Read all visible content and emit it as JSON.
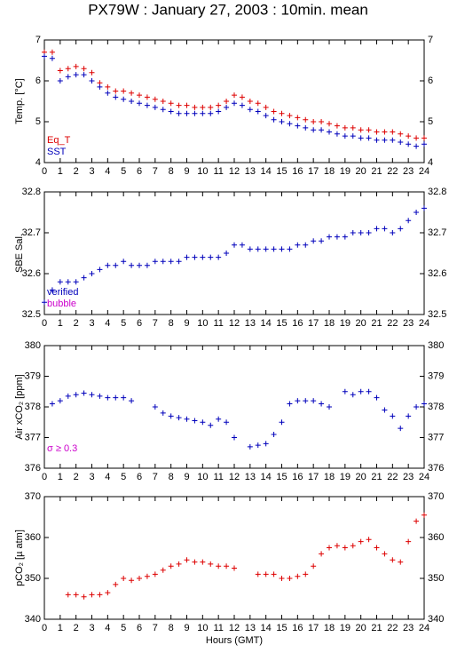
{
  "title": "PX79W : January 27, 2003 : 10min. mean",
  "chart_data": [
    {
      "type": "scatter",
      "ylabel": "Temp. [°C]",
      "xlim": [
        0,
        24
      ],
      "xticks": [
        0,
        1,
        2,
        3,
        4,
        5,
        6,
        7,
        8,
        9,
        10,
        11,
        12,
        13,
        14,
        15,
        16,
        17,
        18,
        19,
        20,
        21,
        22,
        23,
        24
      ],
      "ylim": [
        4,
        7
      ],
      "yticks": [
        4,
        5,
        6,
        7
      ],
      "x": [
        0,
        0.5,
        1,
        1.5,
        2,
        2.5,
        3,
        3.5,
        4,
        4.5,
        5,
        5.5,
        6,
        6.5,
        7,
        7.5,
        8,
        8.5,
        9,
        9.5,
        10,
        10.5,
        11,
        11.5,
        12,
        12.5,
        13,
        13.5,
        14,
        14.5,
        15,
        15.5,
        16,
        16.5,
        17,
        17.5,
        18,
        18.5,
        19,
        19.5,
        20,
        20.5,
        21,
        21.5,
        22,
        22.5,
        23,
        23.5,
        24
      ],
      "series": [
        {
          "name": "Eq_T",
          "color": "#dd0000",
          "values": [
            6.7,
            6.7,
            6.25,
            6.3,
            6.35,
            6.3,
            6.2,
            5.95,
            5.85,
            5.75,
            5.75,
            5.7,
            5.65,
            5.6,
            5.55,
            5.5,
            5.45,
            5.4,
            5.4,
            5.35,
            5.35,
            5.35,
            5.4,
            5.5,
            5.65,
            5.6,
            5.5,
            5.45,
            5.35,
            5.25,
            5.2,
            5.15,
            5.1,
            5.05,
            5.0,
            5.0,
            4.95,
            4.9,
            4.85,
            4.85,
            4.8,
            4.8,
            4.75,
            4.75,
            4.75,
            4.7,
            4.65,
            4.6,
            4.6
          ]
        },
        {
          "name": "SST",
          "color": "#0000bb",
          "values": [
            6.6,
            6.55,
            6.0,
            6.1,
            6.15,
            6.15,
            6.0,
            5.85,
            5.7,
            5.6,
            5.55,
            5.5,
            5.45,
            5.4,
            5.35,
            5.3,
            5.25,
            5.2,
            5.2,
            5.2,
            5.2,
            5.2,
            5.25,
            5.35,
            5.45,
            5.4,
            5.3,
            5.25,
            5.15,
            5.05,
            5.0,
            4.95,
            4.9,
            4.85,
            4.8,
            4.8,
            4.75,
            4.7,
            4.65,
            4.65,
            4.6,
            4.6,
            4.55,
            4.55,
            4.55,
            4.5,
            4.45,
            4.4,
            4.45
          ]
        }
      ]
    },
    {
      "type": "scatter",
      "ylabel": "SBE Sal.",
      "xlim": [
        0,
        24
      ],
      "xticks": [
        0,
        1,
        2,
        3,
        4,
        5,
        6,
        7,
        8,
        9,
        10,
        11,
        12,
        13,
        14,
        15,
        16,
        17,
        18,
        19,
        20,
        21,
        22,
        23,
        24
      ],
      "ylim": [
        32.5,
        32.8
      ],
      "yticks": [
        32.5,
        32.6,
        32.7,
        32.8
      ],
      "x": [
        0,
        0.5,
        1,
        1.5,
        2,
        2.5,
        3,
        3.5,
        4,
        4.5,
        5,
        5.5,
        6,
        6.5,
        7,
        7.5,
        8,
        8.5,
        9,
        9.5,
        10,
        10.5,
        11,
        11.5,
        12,
        12.5,
        13,
        13.5,
        14,
        14.5,
        15,
        15.5,
        16,
        16.5,
        17,
        17.5,
        18,
        18.5,
        19,
        19.5,
        20,
        20.5,
        21,
        21.5,
        22,
        22.5,
        23,
        23.5,
        24
      ],
      "series": [
        {
          "name": "verified",
          "color": "#0000bb",
          "values": [
            32.53,
            32.56,
            32.58,
            32.58,
            32.58,
            32.59,
            32.6,
            32.61,
            32.62,
            32.62,
            32.63,
            32.62,
            32.62,
            32.62,
            32.63,
            32.63,
            32.63,
            32.63,
            32.64,
            32.64,
            32.64,
            32.64,
            32.64,
            32.65,
            32.67,
            32.67,
            32.66,
            32.66,
            32.66,
            32.66,
            32.66,
            32.66,
            32.67,
            32.67,
            32.68,
            32.68,
            32.69,
            32.69,
            32.69,
            32.7,
            32.7,
            32.7,
            32.71,
            32.71,
            32.7,
            32.71,
            32.73,
            32.75,
            32.76
          ]
        },
        {
          "name": "bubble",
          "color": "#cc00cc",
          "values": [
            null,
            null,
            null,
            null,
            null,
            null,
            null,
            null,
            null,
            null,
            null,
            null,
            null,
            null,
            null,
            null,
            null,
            null,
            null,
            null,
            null,
            null,
            null,
            null,
            null,
            null,
            null,
            null,
            null,
            null,
            null,
            null,
            null,
            null,
            null,
            null,
            null,
            null,
            null,
            null,
            null,
            null,
            null,
            null,
            null,
            null,
            null,
            null,
            null
          ]
        }
      ]
    },
    {
      "type": "scatter",
      "ylabel": "Air xCO₂ [ppm]",
      "annotation": "σ ≥ 0.3",
      "annotation_color": "#cc00cc",
      "xlim": [
        0,
        24
      ],
      "xticks": [
        0,
        1,
        2,
        3,
        4,
        5,
        6,
        7,
        8,
        9,
        10,
        11,
        12,
        13,
        14,
        15,
        16,
        17,
        18,
        19,
        20,
        21,
        22,
        23,
        24
      ],
      "ylim": [
        376,
        380
      ],
      "yticks": [
        376,
        377,
        378,
        379,
        380
      ],
      "x": [
        0,
        0.5,
        1,
        1.5,
        2,
        2.5,
        3,
        3.5,
        4,
        4.5,
        5,
        5.5,
        6,
        6.5,
        7,
        7.5,
        8,
        8.5,
        9,
        9.5,
        10,
        10.5,
        11,
        11.5,
        12,
        12.5,
        13,
        13.5,
        14,
        14.5,
        15,
        15.5,
        16,
        16.5,
        17,
        17.5,
        18,
        18.5,
        19,
        19.5,
        20,
        20.5,
        21,
        21.5,
        22,
        22.5,
        23,
        23.5,
        24
      ],
      "series": [
        {
          "color": "#0000bb",
          "values": [
            null,
            378.1,
            378.2,
            378.35,
            378.4,
            378.45,
            378.4,
            378.35,
            378.3,
            378.3,
            378.3,
            378.2,
            null,
            null,
            378.0,
            377.8,
            377.7,
            377.65,
            377.6,
            377.55,
            377.5,
            377.4,
            377.6,
            377.5,
            377.0,
            null,
            376.7,
            376.75,
            376.8,
            377.1,
            377.5,
            378.1,
            378.2,
            378.2,
            378.2,
            378.1,
            378.0,
            null,
            378.5,
            378.4,
            378.5,
            378.5,
            378.3,
            377.9,
            377.7,
            377.3,
            377.7,
            378.0,
            378.1
          ]
        }
      ]
    },
    {
      "type": "scatter",
      "ylabel": "pCO₂ [µ atm]",
      "xlabel": "Hours (GMT)",
      "xlim": [
        0,
        24
      ],
      "xticks": [
        0,
        1,
        2,
        3,
        4,
        5,
        6,
        7,
        8,
        9,
        10,
        11,
        12,
        13,
        14,
        15,
        16,
        17,
        18,
        19,
        20,
        21,
        22,
        23,
        24
      ],
      "ylim": [
        340,
        370
      ],
      "yticks": [
        340,
        350,
        360,
        370
      ],
      "x": [
        0,
        0.5,
        1,
        1.5,
        2,
        2.5,
        3,
        3.5,
        4,
        4.5,
        5,
        5.5,
        6,
        6.5,
        7,
        7.5,
        8,
        8.5,
        9,
        9.5,
        10,
        10.5,
        11,
        11.5,
        12,
        12.5,
        13,
        13.5,
        14,
        14.5,
        15,
        15.5,
        16,
        16.5,
        17,
        17.5,
        18,
        18.5,
        19,
        19.5,
        20,
        20.5,
        21,
        21.5,
        22,
        22.5,
        23,
        23.5,
        24
      ],
      "series": [
        {
          "color": "#dd0000",
          "values": [
            null,
            null,
            null,
            346,
            346,
            345.5,
            346,
            346,
            346.5,
            348.5,
            350,
            349.5,
            350,
            350.5,
            351,
            352,
            353,
            353.5,
            354.5,
            354,
            354,
            353.5,
            353,
            353,
            352.5,
            null,
            null,
            351,
            351,
            351,
            350,
            350,
            350.5,
            351,
            353,
            356,
            357.5,
            358,
            357.5,
            358,
            359,
            359.5,
            357.5,
            356,
            354.5,
            354,
            359,
            364,
            365.5
          ]
        }
      ]
    }
  ]
}
